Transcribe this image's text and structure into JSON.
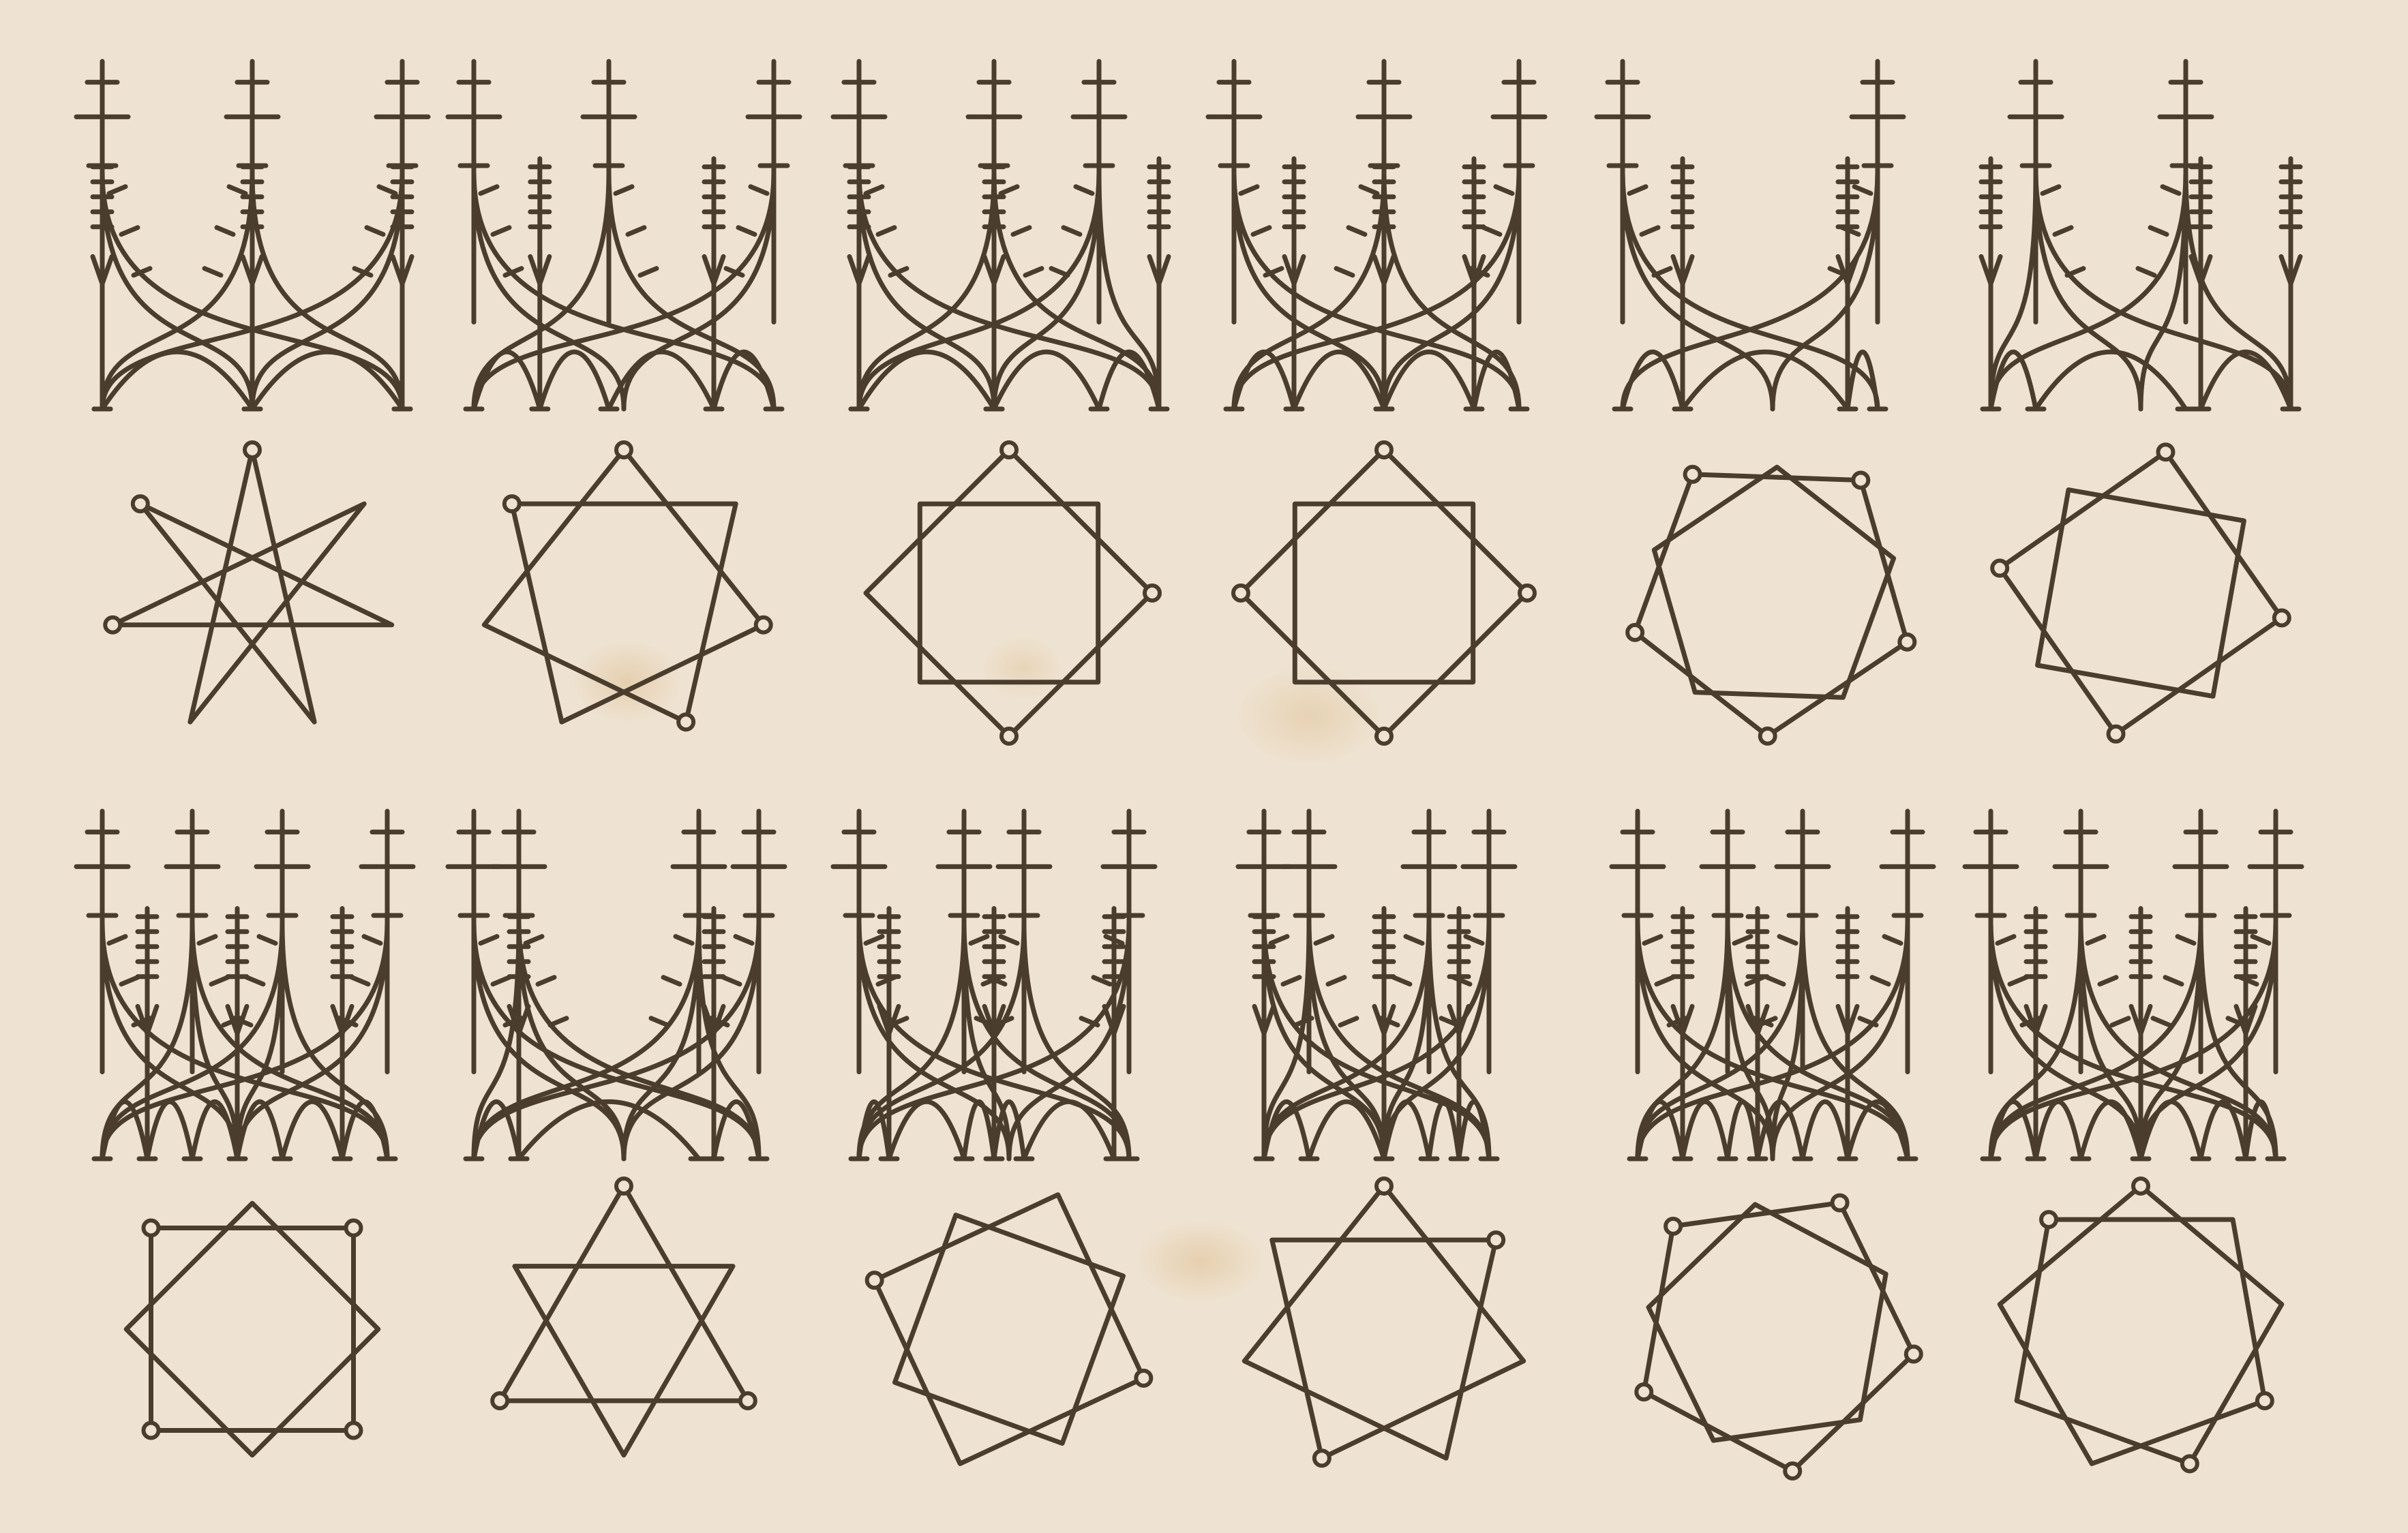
{
  "plate": {
    "rows": 4,
    "columns": 6,
    "ink_color": "#4a3d2e",
    "paper_color": "#eee3d2"
  },
  "vaults": [
    {
      "shafts": [
        0.0,
        0.5,
        1.0
      ],
      "minor": [
        0.0,
        0.5,
        1.0
      ],
      "shared": 0.5
    },
    {
      "shafts": [
        0.0,
        0.45,
        1.0
      ],
      "minor": [
        0.22,
        0.8
      ],
      "shared": 0.5
    },
    {
      "shafts": [
        0.0,
        0.45,
        0.8
      ],
      "minor": [
        0.0,
        0.45,
        1.0
      ],
      "shared": 0.45
    },
    {
      "shafts": [
        0.0,
        0.5,
        0.95
      ],
      "minor": [
        0.2,
        0.5,
        0.8
      ],
      "shared": 0.5
    },
    {
      "shafts": [
        0.0,
        0.85
      ],
      "minor": [
        0.2,
        0.75
      ],
      "shared": 0.5
    },
    {
      "shafts": [
        0.15,
        0.65
      ],
      "minor": [
        0.0,
        0.7,
        1.0
      ],
      "shared": 0.5
    },
    {
      "shafts": [
        0.0,
        0.3,
        0.6,
        0.95
      ],
      "minor": [
        0.15,
        0.45,
        0.8
      ],
      "shared": 0.45
    },
    {
      "shafts": [
        0.0,
        0.15,
        0.75,
        0.95
      ],
      "minor": [
        0.15,
        0.8
      ],
      "shared": 0.5
    },
    {
      "shafts": [
        0.0,
        0.35,
        0.55,
        0.9
      ],
      "minor": [
        0.1,
        0.45,
        0.85
      ],
      "shared": 0.5
    },
    {
      "shafts": [
        0.1,
        0.25,
        0.65,
        0.85
      ],
      "minor": [
        0.1,
        0.5,
        0.75
      ],
      "shared": 0.5
    },
    {
      "shafts": [
        0.05,
        0.35,
        0.6,
        0.95
      ],
      "minor": [
        0.2,
        0.45,
        0.75
      ],
      "shared": 0.5
    },
    {
      "shafts": [
        0.0,
        0.3,
        0.7,
        0.95
      ],
      "minor": [
        0.15,
        0.5,
        0.85
      ],
      "shared": 0.5
    }
  ],
  "stars": [
    {
      "points": 7,
      "step": 3,
      "rings": 3,
      "rotation": -90
    },
    {
      "points": 7,
      "step": 2,
      "rings": 4,
      "rotation": -90
    },
    {
      "points": 4,
      "step": 1,
      "rings": 3,
      "rotation": -90,
      "double": true
    },
    {
      "points": 4,
      "step": 1,
      "rings": 4,
      "rotation": 0,
      "double": true
    },
    {
      "points": 5,
      "step": 1,
      "rings": 6,
      "rotation": 20,
      "double": true
    },
    {
      "points": 4,
      "step": 1,
      "rings": 4,
      "rotation": 10,
      "double": true
    },
    {
      "points": 4,
      "step": 1,
      "rings": 4,
      "rotation": 45,
      "double": true
    },
    {
      "points": 3,
      "step": 1,
      "rings": 3,
      "rotation": -90,
      "double": true
    },
    {
      "points": 4,
      "step": 1,
      "rings": 2,
      "rotation": 20,
      "double": true
    },
    {
      "points": 7,
      "step": 2,
      "rings": 3,
      "rotation": -90
    },
    {
      "points": 5,
      "step": 1,
      "rings": 6,
      "rotation": 10,
      "double": true
    },
    {
      "points": 9,
      "step": 2,
      "rings": 4,
      "rotation": -90
    }
  ]
}
